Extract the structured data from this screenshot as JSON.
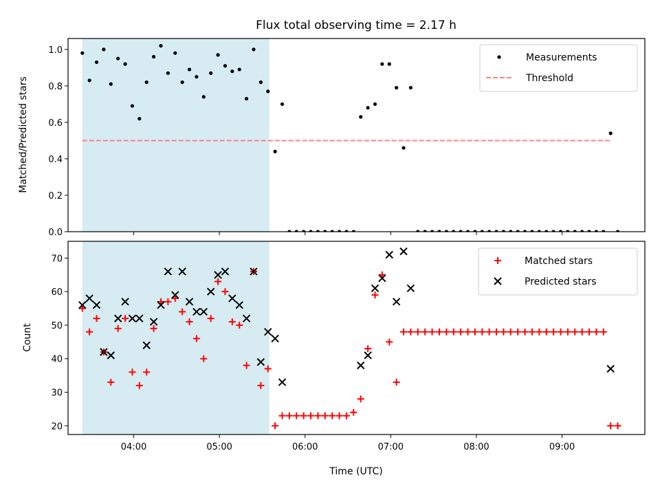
{
  "title": "Flux total observing time = 2.17 h",
  "colors": {
    "span": "#add8e6",
    "threshold": "#ff8080",
    "measurement": "#000000",
    "matched": "#ff0000",
    "predicted": "#000000"
  },
  "chart_data": [
    {
      "type": "scatter",
      "xlabel": "",
      "ylabel": "Matched/Predicted stars",
      "xlim": [
        "03:14",
        "09:58"
      ],
      "ylim": [
        0,
        1.06
      ],
      "yticks": [
        0.0,
        0.2,
        0.4,
        0.6,
        0.8,
        1.0
      ],
      "ytick_labels": [
        "0.0",
        "0.2",
        "0.4",
        "0.6",
        "0.8",
        "1.0"
      ],
      "xticks": [
        "04:00",
        "05:00",
        "06:00",
        "07:00",
        "08:00",
        "09:00"
      ],
      "shaded_span": [
        "03:24",
        "05:35"
      ],
      "legend_position": "top-right",
      "threshold": {
        "name": "Threshold",
        "value": 0.5,
        "x": [
          "03:24",
          "09:35"
        ]
      },
      "series": [
        {
          "name": "Measurements",
          "marker": "dot",
          "x": [
            "03:24",
            "03:29",
            "03:34",
            "03:39",
            "03:44",
            "03:49",
            "03:54",
            "03:59",
            "04:04",
            "04:09",
            "04:14",
            "04:19",
            "04:24",
            "04:29",
            "04:34",
            "04:39",
            "04:44",
            "04:49",
            "04:54",
            "04:59",
            "05:04",
            "05:09",
            "05:14",
            "05:19",
            "05:24",
            "05:29",
            "05:34",
            "05:39",
            "05:44",
            "05:49",
            "05:54",
            "05:59",
            "06:04",
            "06:09",
            "06:14",
            "06:19",
            "06:24",
            "06:29",
            "06:34",
            "06:39",
            "06:44",
            "06:49",
            "06:54",
            "06:59",
            "07:04",
            "07:09",
            "07:14",
            "07:19",
            "07:24",
            "07:29",
            "07:34",
            "07:39",
            "07:44",
            "07:49",
            "07:54",
            "07:59",
            "08:04",
            "08:09",
            "08:14",
            "08:19",
            "08:24",
            "08:29",
            "08:34",
            "08:39",
            "08:44",
            "08:49",
            "08:54",
            "08:59",
            "09:04",
            "09:09",
            "09:14",
            "09:19",
            "09:24",
            "09:29",
            "09:34",
            "09:39"
          ],
          "y": [
            0.98,
            0.83,
            0.93,
            1.0,
            0.81,
            0.95,
            0.92,
            0.69,
            0.62,
            0.82,
            0.96,
            1.02,
            0.87,
            0.98,
            0.82,
            0.89,
            0.85,
            0.74,
            0.87,
            0.97,
            0.91,
            0.88,
            0.89,
            0.73,
            1.0,
            0.82,
            0.77,
            0.44,
            0.7,
            0,
            0,
            0,
            0,
            0,
            0,
            0,
            0,
            0,
            0,
            0.63,
            0.68,
            0.7,
            0.92,
            0.92,
            0.79,
            0.46,
            0.79,
            0,
            0,
            0,
            0,
            0,
            0,
            0,
            0,
            0,
            0,
            0,
            0,
            0,
            0,
            0,
            0,
            0,
            0,
            0,
            0,
            0,
            0,
            0,
            0,
            0,
            0,
            0,
            0.54,
            0
          ]
        }
      ]
    },
    {
      "type": "scatter",
      "xlabel": "Time (UTC)",
      "ylabel": "Count",
      "xlim": [
        "03:14",
        "09:58"
      ],
      "ylim": [
        17.4,
        75
      ],
      "yticks": [
        20,
        30,
        40,
        50,
        60,
        70
      ],
      "ytick_labels": [
        "20",
        "30",
        "40",
        "50",
        "60",
        "70"
      ],
      "xticks": [
        "04:00",
        "05:00",
        "06:00",
        "07:00",
        "08:00",
        "09:00"
      ],
      "xtick_labels": [
        "04:00",
        "05:00",
        "06:00",
        "07:00",
        "08:00",
        "09:00"
      ],
      "shaded_span": [
        "03:24",
        "05:35"
      ],
      "legend_position": "top-right",
      "series": [
        {
          "name": "Matched stars",
          "marker": "plus",
          "x": [
            "03:24",
            "03:29",
            "03:34",
            "03:39",
            "03:44",
            "03:49",
            "03:54",
            "03:59",
            "04:04",
            "04:09",
            "04:14",
            "04:19",
            "04:24",
            "04:29",
            "04:34",
            "04:39",
            "04:44",
            "04:49",
            "04:54",
            "04:59",
            "05:04",
            "05:09",
            "05:14",
            "05:19",
            "05:24",
            "05:29",
            "05:34",
            "05:39",
            "05:44",
            "05:49",
            "05:54",
            "05:59",
            "06:04",
            "06:09",
            "06:14",
            "06:19",
            "06:24",
            "06:29",
            "06:34",
            "06:39",
            "06:44",
            "06:49",
            "06:54",
            "06:59",
            "07:04",
            "07:09",
            "07:14",
            "07:19",
            "07:24",
            "07:29",
            "07:34",
            "07:39",
            "07:44",
            "07:49",
            "07:54",
            "07:59",
            "08:04",
            "08:09",
            "08:14",
            "08:19",
            "08:24",
            "08:29",
            "08:34",
            "08:39",
            "08:44",
            "08:49",
            "08:54",
            "08:59",
            "09:04",
            "09:09",
            "09:14",
            "09:19",
            "09:24",
            "09:29",
            "09:34",
            "09:39"
          ],
          "y": [
            55,
            48,
            52,
            42,
            33,
            49,
            52,
            36,
            32,
            36,
            49,
            57,
            57,
            58,
            54,
            51,
            46,
            40,
            52,
            63,
            60,
            51,
            50,
            38,
            66,
            32,
            37,
            20,
            23,
            23,
            23,
            23,
            23,
            23,
            23,
            23,
            23,
            23,
            24,
            28,
            43,
            59,
            65,
            45,
            33,
            48,
            48,
            48,
            48,
            48,
            48,
            48,
            48,
            48,
            48,
            48,
            48,
            48,
            48,
            48,
            48,
            48,
            48,
            48,
            48,
            48,
            48,
            48,
            48,
            48,
            48,
            48,
            48,
            48,
            20,
            20
          ]
        },
        {
          "name": "Predicted stars",
          "marker": "x",
          "x": [
            "03:24",
            "03:29",
            "03:34",
            "03:39",
            "03:44",
            "03:49",
            "03:54",
            "03:59",
            "04:04",
            "04:09",
            "04:14",
            "04:19",
            "04:24",
            "04:29",
            "04:34",
            "04:39",
            "04:44",
            "04:49",
            "04:54",
            "04:59",
            "05:04",
            "05:09",
            "05:14",
            "05:19",
            "05:24",
            "05:29",
            "05:34",
            "05:39",
            "05:44",
            "06:39",
            "06:44",
            "06:49",
            "06:54",
            "06:59",
            "07:04",
            "07:09",
            "07:14",
            "09:34"
          ],
          "y": [
            56,
            58,
            56,
            42,
            41,
            52,
            57,
            52,
            52,
            44,
            51,
            56,
            66,
            59,
            66,
            57,
            54,
            54,
            60,
            65,
            66,
            58,
            56,
            52,
            66,
            39,
            48,
            46,
            33,
            38,
            41,
            61,
            64,
            71,
            57,
            72,
            61,
            37
          ]
        }
      ]
    }
  ]
}
